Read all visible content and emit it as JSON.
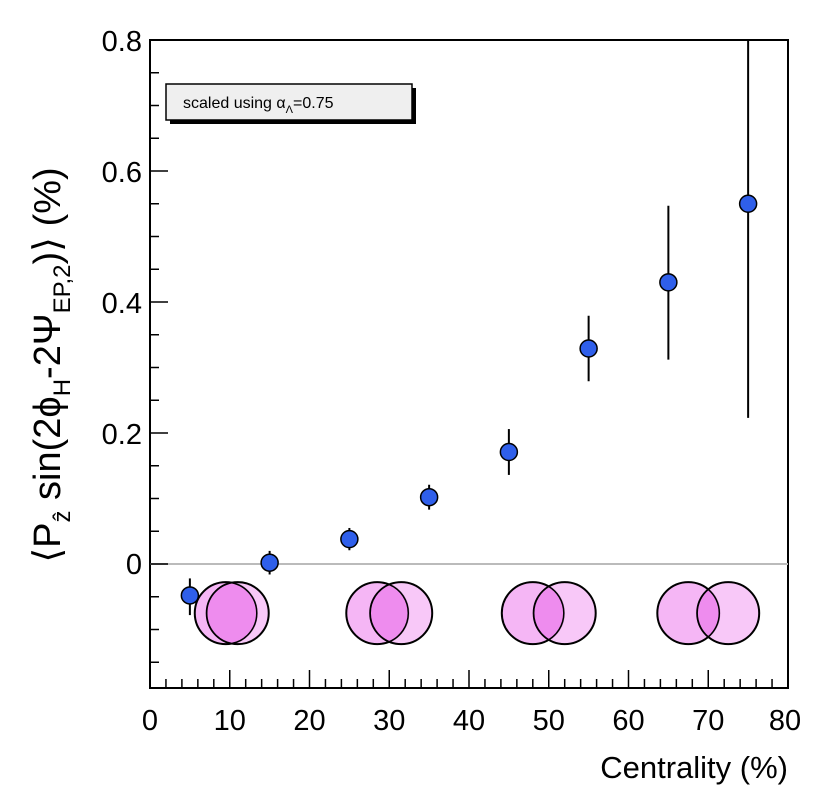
{
  "colors": {
    "marker": "#2f5fea",
    "baseline": "#bbbbbb",
    "circle_fill": "#f5b6f5",
    "circle_overlap": "#ee8cee"
  },
  "chart_data": {
    "type": "scatter",
    "title": "",
    "xlabel": "Centrality (%)",
    "ylabel": {
      "open": "⟨P",
      "sub_z": "ẑ",
      "mid1": " sin(2ϕ",
      "sub_h": "H",
      "mid2": "-2Ψ",
      "sub_ep": "EP,2",
      "close": ")⟩ (%)"
    },
    "xlim": [
      0,
      80
    ],
    "ylim": [
      -0.19,
      0.8
    ],
    "x_ticks": [
      "0",
      "10",
      "20",
      "30",
      "40",
      "50",
      "60",
      "70",
      "80"
    ],
    "y_ticks": [
      "0",
      "0.2",
      "0.4",
      "0.6",
      "0.8"
    ],
    "annotation": {
      "text": "scaled using α",
      "sub": "Λ",
      "suffix": "=0.75"
    },
    "series": [
      {
        "name": "data",
        "x": [
          5,
          15,
          25,
          35,
          45,
          55,
          65,
          75
        ],
        "y": [
          -0.048,
          0.002,
          0.038,
          0.102,
          0.171,
          0.329,
          0.43,
          0.55
        ],
        "err_low": [
          0.03,
          0.018,
          0.017,
          0.019,
          0.035,
          0.05,
          0.118,
          0.327
        ],
        "err_high": [
          0.026,
          0.018,
          0.017,
          0.019,
          0.035,
          0.05,
          0.117,
          0.25
        ]
      }
    ],
    "collision_icons": [
      {
        "x1": 9.5,
        "x2": 11.0
      },
      {
        "x1": 28.5,
        "x2": 31.5
      },
      {
        "x1": 48.0,
        "x2": 52.0
      },
      {
        "x1": 67.5,
        "x2": 72.5
      }
    ],
    "collision_y": -0.075
  }
}
